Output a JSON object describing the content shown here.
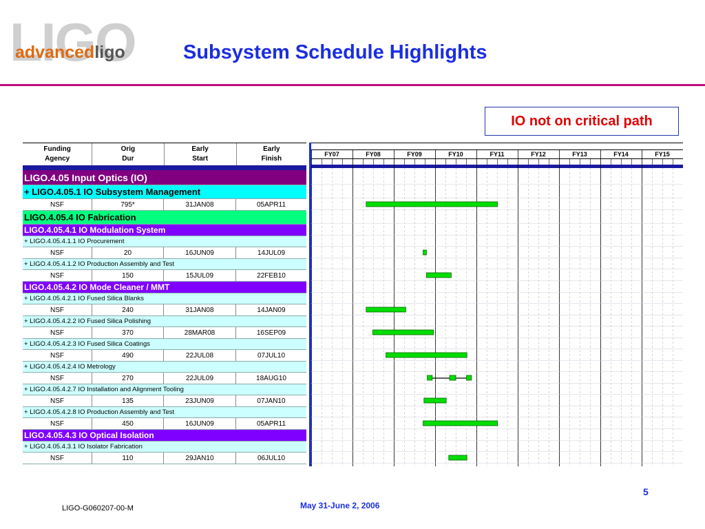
{
  "header": {
    "logo_main": "LIGO",
    "logo_advanced": "advanced",
    "logo_ligo": "ligo",
    "title": "Subsystem Schedule Highlights"
  },
  "callout": "IO not on critical path",
  "table": {
    "col_headers": [
      [
        "Funding",
        "Agency"
      ],
      [
        "Orig",
        "Dur"
      ],
      [
        "Early",
        "Start"
      ],
      [
        "Early",
        "Finish"
      ]
    ],
    "rows": [
      {
        "kind": "l1",
        "text": "LIGO.4.05  Input Optics (IO)"
      },
      {
        "kind": "l2",
        "text": "+ LIGO.4.05.1  IO Subsystem Management"
      },
      {
        "kind": "data",
        "cells": [
          "NSF",
          "795*",
          "31JAN08",
          "05APR11"
        ],
        "bars": [
          [
            2008.33,
            2011.51
          ]
        ]
      },
      {
        "kind": "l3",
        "text": "LIGO.4.05.4  IO Fabrication"
      },
      {
        "kind": "l4",
        "text": "LIGO.4.05.4.1  IO Modulation System"
      },
      {
        "kind": "sub",
        "text": "+ LIGO.4.05.4.1.1  IO Procurement"
      },
      {
        "kind": "data",
        "cells": [
          "NSF",
          "20",
          "16JUN09",
          "14JUL09"
        ],
        "bars": [
          [
            2009.71,
            2009.79
          ]
        ]
      },
      {
        "kind": "sub",
        "text": "+ LIGO.4.05.4.1.2  IO Production Assembly and Test"
      },
      {
        "kind": "data",
        "cells": [
          "NSF",
          "150",
          "15JUL09",
          "22FEB10"
        ],
        "bars": [
          [
            2009.79,
            2010.39
          ]
        ]
      },
      {
        "kind": "l4",
        "text": "LIGO.4.05.4.2  IO Mode Cleaner / MMT"
      },
      {
        "kind": "sub",
        "text": "+ LIGO.4.05.4.2.1  IO Fused Silica Blanks"
      },
      {
        "kind": "data",
        "cells": [
          "NSF",
          "240",
          "31JAN08",
          "14JAN09"
        ],
        "bars": [
          [
            2008.33,
            2009.29
          ]
        ]
      },
      {
        "kind": "sub",
        "text": "+ LIGO.4.05.4.2.2  IO Fused Silica Polishing"
      },
      {
        "kind": "data",
        "cells": [
          "NSF",
          "370",
          "28MAR08",
          "16SEP09"
        ],
        "bars": [
          [
            2008.49,
            2009.96
          ]
        ]
      },
      {
        "kind": "sub",
        "text": "+ LIGO.4.05.4.2.3  IO Fused Silica Coatings"
      },
      {
        "kind": "data",
        "cells": [
          "NSF",
          "490",
          "22JUL08",
          "07JUL10"
        ],
        "bars": [
          [
            2008.81,
            2010.77
          ]
        ]
      },
      {
        "kind": "sub",
        "text": "+ LIGO.4.05.4.2.4  IO Metrology"
      },
      {
        "kind": "data",
        "cells": [
          "NSF",
          "270",
          "22JUL09",
          "18AUG10"
        ],
        "bars": [
          [
            2009.81,
            2009.93
          ],
          [
            2010.35,
            2010.5
          ],
          [
            2010.76,
            2010.88
          ]
        ],
        "connector": [
          2009.81,
          2010.88
        ]
      },
      {
        "kind": "sub",
        "text": "+ LIGO.4.05.4.2.7  IO Installation and Alignment Tooling"
      },
      {
        "kind": "data",
        "cells": [
          "NSF",
          "135",
          "23JUN09",
          "07JAN10"
        ],
        "bars": [
          [
            2009.73,
            2010.27
          ]
        ]
      },
      {
        "kind": "sub",
        "text": "+ LIGO.4.05.4.2.8  IO Production Assembly and Test"
      },
      {
        "kind": "data",
        "cells": [
          "NSF",
          "450",
          "16JUN09",
          "05APR11"
        ],
        "bars": [
          [
            2009.71,
            2011.51
          ]
        ]
      },
      {
        "kind": "l4",
        "text": "LIGO.4.05.4.3  IO Optical Isolation"
      },
      {
        "kind": "sub",
        "text": "+ LIGO.4.05.4.3.1  IO Isolator Fabrication"
      },
      {
        "kind": "data",
        "cells": [
          "NSF",
          "110",
          "29JAN10",
          "06JUL10"
        ],
        "bars": [
          [
            2010.33,
            2010.77
          ]
        ]
      }
    ]
  },
  "gantt": {
    "fiscal_years": [
      "FY07",
      "FY08",
      "FY09",
      "FY10",
      "FY11",
      "FY12",
      "FY13",
      "FY14",
      "FY15"
    ],
    "fy_start": 2007,
    "bar_color": "#00dd00"
  },
  "footer": {
    "doc_id": "LIGO-G060207-00-M",
    "date": "May 31-June 2, 2006",
    "page": "5"
  }
}
